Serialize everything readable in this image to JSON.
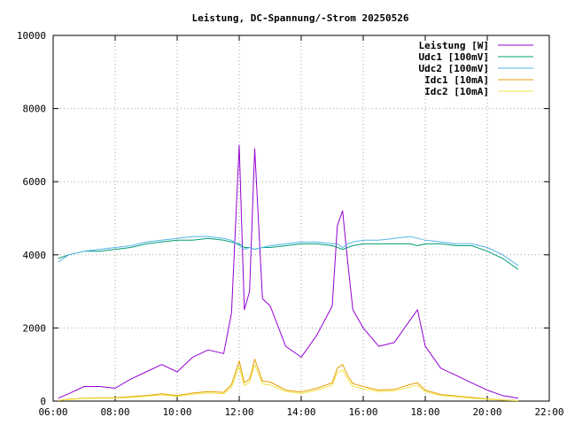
{
  "chart_data": {
    "type": "line",
    "title": "Leistung, DC-Spannung/-Strom 20250526",
    "xlabel": "",
    "ylabel": "",
    "x_range": [
      "06:00",
      "22:00"
    ],
    "ylim": [
      0,
      10000
    ],
    "x_ticks": [
      "06:00",
      "08:00",
      "10:00",
      "12:00",
      "14:00",
      "16:00",
      "18:00",
      "20:00",
      "22:00"
    ],
    "y_ticks": [
      "0",
      "2000",
      "4000",
      "6000",
      "8000",
      "10000"
    ],
    "grid": true,
    "legend_position": "top-right",
    "x": [
      "06:10",
      "06:30",
      "07:00",
      "07:30",
      "08:00",
      "08:30",
      "09:00",
      "09:30",
      "10:00",
      "10:30",
      "11:00",
      "11:30",
      "11:45",
      "12:00",
      "12:10",
      "12:20",
      "12:30",
      "12:45",
      "13:00",
      "13:30",
      "14:00",
      "14:30",
      "15:00",
      "15:10",
      "15:20",
      "15:30",
      "15:40",
      "16:00",
      "16:30",
      "17:00",
      "17:30",
      "17:45",
      "18:00",
      "18:30",
      "19:00",
      "19:30",
      "20:00",
      "20:30",
      "21:00"
    ],
    "series": [
      {
        "name": "Leistung [W]",
        "color": "#9400d3",
        "values": [
          80,
          200,
          400,
          400,
          350,
          600,
          800,
          1000,
          800,
          1200,
          1400,
          1300,
          2400,
          7000,
          2500,
          3000,
          6900,
          2800,
          2600,
          1500,
          1200,
          1800,
          2600,
          4800,
          5200,
          3800,
          2500,
          2000,
          1500,
          1600,
          2200,
          2500,
          1500,
          900,
          700,
          500,
          300,
          150,
          80
        ]
      },
      {
        "name": "Udc1 [100mV]",
        "color": "#009e73",
        "values": [
          3900,
          4000,
          4100,
          4100,
          4150,
          4200,
          4300,
          4350,
          4400,
          4400,
          4450,
          4400,
          4350,
          4300,
          4200,
          4200,
          4150,
          4200,
          4200,
          4250,
          4300,
          4300,
          4250,
          4200,
          4150,
          4200,
          4250,
          4300,
          4300,
          4300,
          4300,
          4250,
          4300,
          4300,
          4250,
          4250,
          4100,
          3900,
          3600
        ]
      },
      {
        "name": "Udc2 [100mV]",
        "color": "#56b4e9",
        "values": [
          3800,
          4000,
          4100,
          4150,
          4200,
          4250,
          4350,
          4400,
          4450,
          4500,
          4500,
          4450,
          4400,
          4250,
          4150,
          4200,
          4150,
          4200,
          4250,
          4300,
          4350,
          4350,
          4300,
          4300,
          4200,
          4300,
          4350,
          4400,
          4400,
          4450,
          4500,
          4450,
          4400,
          4350,
          4300,
          4300,
          4200,
          4000,
          3700
        ]
      },
      {
        "name": "Idc1 [10mA]",
        "color": "#e69f00",
        "values": [
          20,
          50,
          80,
          90,
          90,
          120,
          150,
          200,
          150,
          220,
          260,
          240,
          450,
          1100,
          500,
          600,
          1150,
          550,
          520,
          300,
          250,
          350,
          500,
          900,
          1000,
          700,
          480,
          400,
          300,
          320,
          450,
          500,
          300,
          180,
          140,
          100,
          60,
          30,
          15
        ]
      },
      {
        "name": "Idc2 [10mA]",
        "color": "#f0e442",
        "values": [
          15,
          40,
          70,
          80,
          80,
          100,
          130,
          170,
          130,
          190,
          220,
          200,
          380,
          950,
          420,
          520,
          1000,
          470,
          440,
          260,
          210,
          300,
          430,
          780,
          850,
          600,
          410,
          340,
          260,
          280,
          380,
          430,
          260,
          150,
          120,
          80,
          50,
          25,
          10
        ]
      }
    ]
  }
}
